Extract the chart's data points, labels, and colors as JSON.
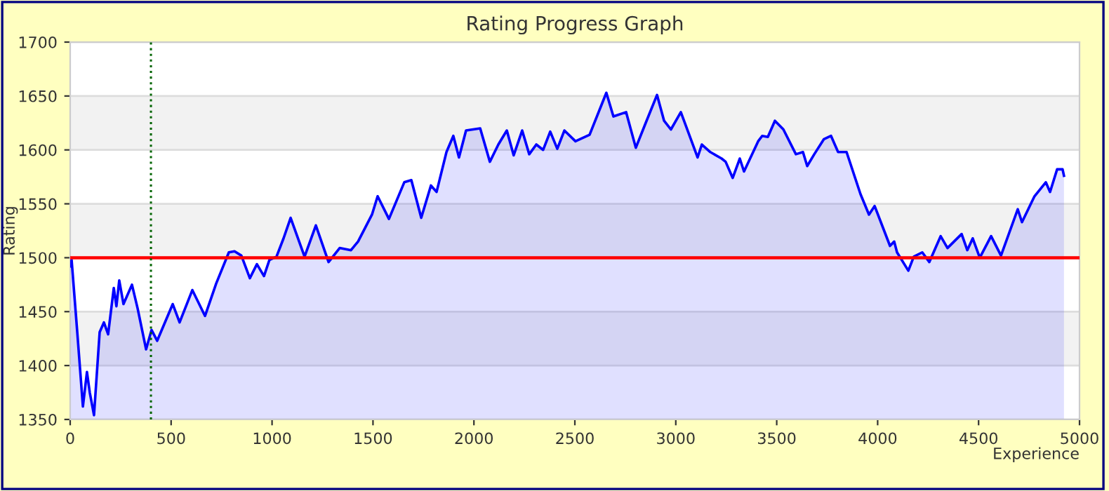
{
  "chart_data": {
    "type": "area",
    "title": "Rating Progress Graph",
    "xlabel": "Experience",
    "ylabel": "Rating",
    "xlim": [
      0,
      5000
    ],
    "xticks": [
      0,
      500,
      1000,
      1500,
      2000,
      2500,
      3000,
      3500,
      4000,
      4500,
      5000
    ],
    "ylim": [
      1350,
      1700
    ],
    "yticks": [
      1350,
      1400,
      1450,
      1500,
      1550,
      1600,
      1650,
      1700
    ],
    "grid": "y",
    "marker": "none",
    "line_style": "solid",
    "ref_lines": [
      {
        "axis": "y",
        "value": 1500,
        "color": "#ff0000",
        "line_style": "solid"
      },
      {
        "axis": "x",
        "value": 400,
        "color": "#006400",
        "line_style": "dotted"
      }
    ],
    "bands": [
      {
        "axis": "y",
        "from": 1400,
        "to": 1450,
        "color": "#f2f2f2"
      },
      {
        "axis": "y",
        "from": 1500,
        "to": 1550,
        "color": "#f2f2f2"
      },
      {
        "axis": "y",
        "from": 1600,
        "to": 1650,
        "color": "#f2f2f2"
      }
    ],
    "series": [
      {
        "color": "#0000ff",
        "x": [
          0,
          7,
          35,
          63,
          83,
          97,
          118,
          146,
          167,
          188,
          216,
          229,
          243,
          264,
          306,
          334,
          376,
          403,
          431,
          508,
          542,
          605,
          668,
          723,
          786,
          814,
          848,
          890,
          925,
          960,
          987,
          1022,
          1057,
          1092,
          1161,
          1217,
          1280,
          1335,
          1391,
          1426,
          1495,
          1523,
          1579,
          1655,
          1690,
          1739,
          1787,
          1815,
          1864,
          1898,
          1926,
          1961,
          2031,
          2079,
          2121,
          2163,
          2197,
          2239,
          2274,
          2309,
          2343,
          2378,
          2413,
          2448,
          2503,
          2573,
          2656,
          2691,
          2754,
          2802,
          2851,
          2907,
          2942,
          2976,
          3025,
          3108,
          3129,
          3171,
          3227,
          3247,
          3282,
          3317,
          3338,
          3408,
          3428,
          3456,
          3491,
          3533,
          3595,
          3630,
          3651,
          3686,
          3734,
          3769,
          3804,
          3846,
          3915,
          3957,
          3985,
          4061,
          4082,
          4096,
          4152,
          4179,
          4221,
          4256,
          4312,
          4346,
          4416,
          4444,
          4471,
          4506,
          4562,
          4611,
          4694,
          4715,
          4777,
          4833,
          4854,
          4889,
          4916,
          4923
        ],
        "values": [
          1492,
          1498,
          1431,
          1362,
          1394,
          1375,
          1354,
          1431,
          1440,
          1429,
          1472,
          1455,
          1479,
          1457,
          1475,
          1453,
          1415,
          1433,
          1423,
          1457,
          1440,
          1470,
          1446,
          1476,
          1505,
          1506,
          1502,
          1481,
          1494,
          1483,
          1498,
          1501,
          1518,
          1537,
          1501,
          1530,
          1496,
          1509,
          1507,
          1515,
          1540,
          1557,
          1536,
          1570,
          1572,
          1537,
          1567,
          1561,
          1598,
          1613,
          1593,
          1618,
          1620,
          1589,
          1605,
          1618,
          1595,
          1618,
          1596,
          1605,
          1600,
          1617,
          1601,
          1618,
          1608,
          1614,
          1653,
          1631,
          1635,
          1602,
          1625,
          1651,
          1627,
          1619,
          1635,
          1593,
          1605,
          1598,
          1592,
          1589,
          1574,
          1592,
          1580,
          1608,
          1613,
          1612,
          1627,
          1619,
          1596,
          1598,
          1585,
          1596,
          1610,
          1613,
          1598,
          1598,
          1559,
          1540,
          1548,
          1511,
          1515,
          1505,
          1488,
          1501,
          1505,
          1496,
          1520,
          1509,
          1522,
          1507,
          1518,
          1500,
          1520,
          1502,
          1545,
          1533,
          1557,
          1570,
          1561,
          1582,
          1582,
          1576
        ]
      }
    ]
  }
}
